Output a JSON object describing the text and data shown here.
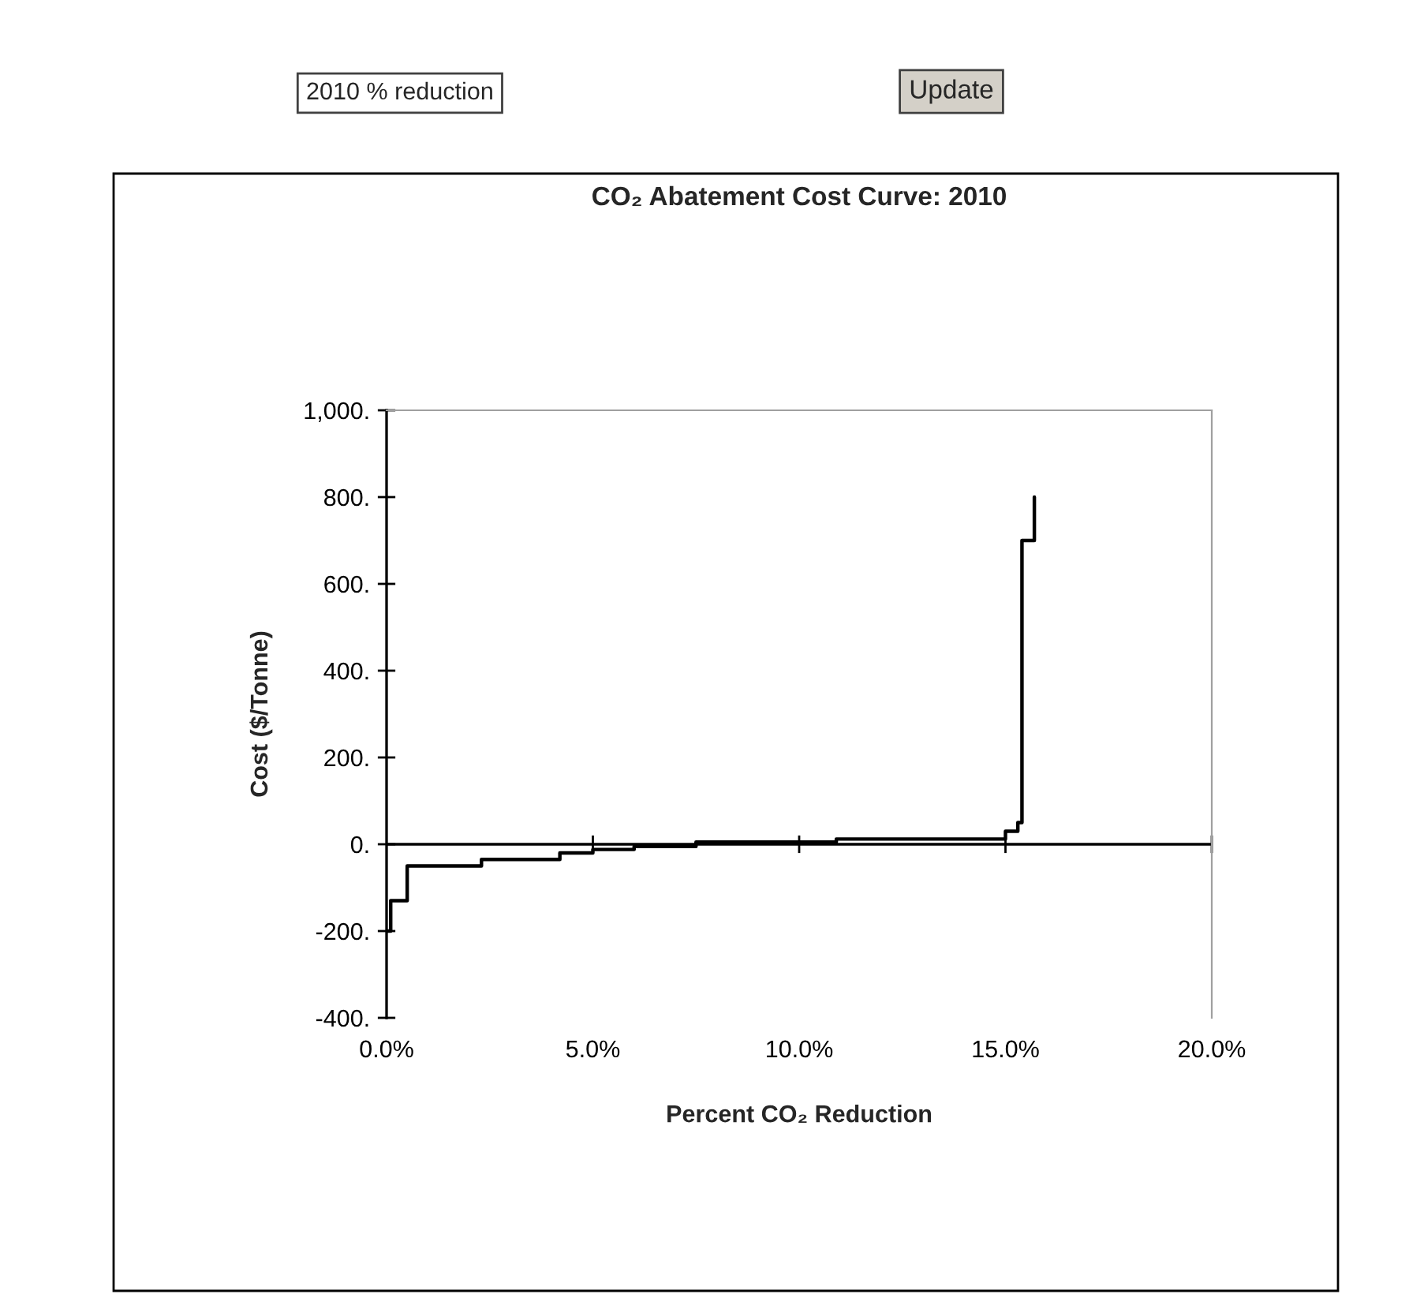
{
  "chart_data": {
    "type": "step",
    "title": "CO₂ Abatement Cost Curve: 2010",
    "xlabel": "Percent CO₂ Reduction",
    "ylabel": "Cost ($/Tonne)",
    "annotations": [
      "2010 % reduction",
      "Update"
    ],
    "series": [
      {
        "color": "#000000",
        "x": [
          0,
          0.1,
          0.5,
          2.3,
          4.2,
          5.0,
          6.0,
          7.5,
          10.9,
          15.0,
          15.3,
          15.4,
          15.7
        ],
        "values": [
          -200,
          -130,
          -50,
          -35,
          -20,
          -12,
          -5,
          5,
          12,
          30,
          50,
          700,
          800
        ]
      }
    ],
    "xlim": [
      0,
      20
    ],
    "xticks": [
      {
        "value": 0,
        "label": "0.0%"
      },
      {
        "value": 5,
        "label": "5.0%"
      },
      {
        "value": 10,
        "label": "10.0%"
      },
      {
        "value": 15,
        "label": "15.0%"
      },
      {
        "value": 20,
        "label": "20.0%"
      }
    ],
    "ylim": [
      -400,
      1000
    ],
    "yticks": [
      {
        "value": -400,
        "label": "-400."
      },
      {
        "value": -200,
        "label": "-200."
      },
      {
        "value": 0,
        "label": "0."
      },
      {
        "value": 200,
        "label": "200."
      },
      {
        "value": 400,
        "label": "400."
      },
      {
        "value": 600,
        "label": "600."
      },
      {
        "value": 800,
        "label": "800."
      },
      {
        "value": 1000,
        "label": "1,000."
      }
    ],
    "ref_lines": [
      {
        "axis": "y",
        "value": 0,
        "color": "#000000",
        "line_style": "solid"
      }
    ],
    "grid": false,
    "legend": false,
    "line_style": "solid",
    "marker": "none"
  }
}
